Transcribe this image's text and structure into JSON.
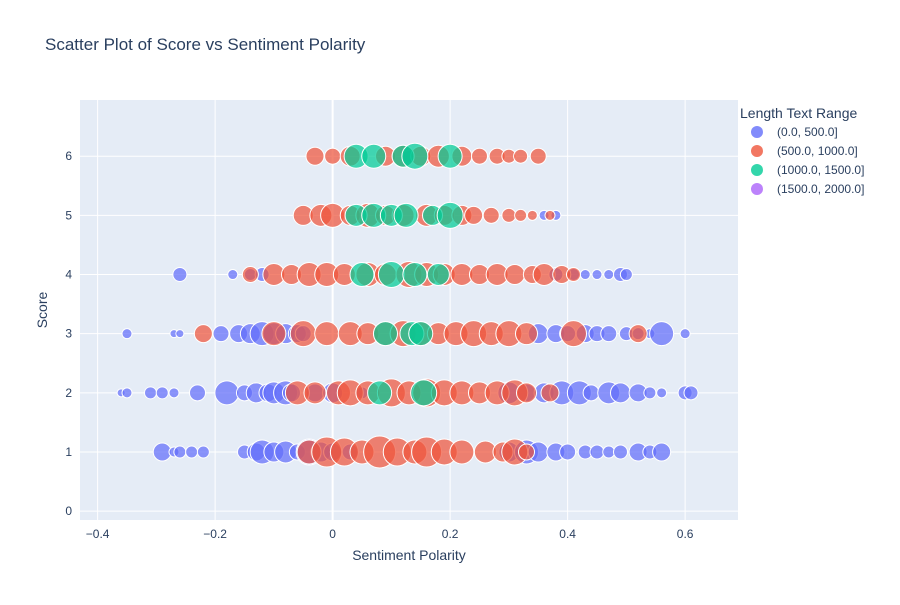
{
  "chart_data": {
    "type": "scatter",
    "title": "Scatter Plot of Score vs Sentiment Polarity",
    "xlabel": "Sentiment Polarity",
    "ylabel": "Score",
    "xlim": [
      -0.43,
      0.69
    ],
    "ylim": [
      -0.15,
      6.95
    ],
    "x_ticks": [
      -0.4,
      -0.2,
      0,
      0.2,
      0.4,
      0.6
    ],
    "x_tick_labels": [
      "−0.4",
      "−0.2",
      "0",
      "0.2",
      "0.4",
      "0.6"
    ],
    "y_ticks": [
      0,
      1,
      2,
      3,
      4,
      5,
      6
    ],
    "y_tick_labels": [
      "0",
      "1",
      "2",
      "3",
      "4",
      "5",
      "6"
    ],
    "grid": true,
    "marker_opacity": 0.72,
    "legend": {
      "title": "Length Text Range",
      "placement": "top-right",
      "entries": [
        "(0.0, 500.0]",
        "(500.0, 1000.0]",
        "(1000.0, 1500.0]",
        "(1500.0, 2000.0]"
      ]
    },
    "colors": {
      "plot_background": "#e5ecf6",
      "grid": "#ffffff",
      "series": [
        "#636efa",
        "#ef553b",
        "#00cc96",
        "#ab63fa"
      ],
      "text": "#2a3f5f"
    },
    "series": [
      {
        "name": "(0.0, 500.0]",
        "points": [
          [
            -0.29,
            1,
            9
          ],
          [
            -0.27,
            1,
            5
          ],
          [
            -0.26,
            1,
            6
          ],
          [
            -0.24,
            1,
            6
          ],
          [
            -0.22,
            1,
            6
          ],
          [
            -0.15,
            1,
            7
          ],
          [
            -0.13,
            1,
            9
          ],
          [
            -0.12,
            1,
            12
          ],
          [
            -0.1,
            1,
            10
          ],
          [
            -0.08,
            1,
            11
          ],
          [
            -0.06,
            1,
            8
          ],
          [
            -0.04,
            1,
            13
          ],
          [
            -0.02,
            1,
            10
          ],
          [
            0.0,
            1,
            9
          ],
          [
            0.03,
            1,
            8
          ],
          [
            0.3,
            1,
            10
          ],
          [
            0.33,
            1,
            12
          ],
          [
            0.35,
            1,
            10
          ],
          [
            0.38,
            1,
            9
          ],
          [
            0.4,
            1,
            8
          ],
          [
            0.43,
            1,
            7
          ],
          [
            0.45,
            1,
            7
          ],
          [
            0.47,
            1,
            6
          ],
          [
            0.49,
            1,
            7
          ],
          [
            0.52,
            1,
            9
          ],
          [
            0.54,
            1,
            7
          ],
          [
            0.56,
            1,
            9
          ],
          [
            -0.36,
            2,
            4
          ],
          [
            -0.35,
            2,
            5
          ],
          [
            -0.31,
            2,
            6
          ],
          [
            -0.29,
            2,
            6
          ],
          [
            -0.27,
            2,
            5
          ],
          [
            -0.23,
            2,
            8
          ],
          [
            -0.18,
            2,
            12
          ],
          [
            -0.15,
            2,
            8
          ],
          [
            -0.13,
            2,
            10
          ],
          [
            -0.11,
            2,
            9
          ],
          [
            -0.1,
            2,
            11
          ],
          [
            -0.08,
            2,
            12
          ],
          [
            -0.07,
            2,
            9
          ],
          [
            -0.03,
            2,
            9
          ],
          [
            0.0,
            2,
            10
          ],
          [
            0.05,
            2,
            6
          ],
          [
            0.3,
            2,
            11
          ],
          [
            0.33,
            2,
            9
          ],
          [
            0.36,
            2,
            10
          ],
          [
            0.39,
            2,
            12
          ],
          [
            0.42,
            2,
            12
          ],
          [
            0.44,
            2,
            8
          ],
          [
            0.47,
            2,
            11
          ],
          [
            0.49,
            2,
            10
          ],
          [
            0.52,
            2,
            9
          ],
          [
            0.54,
            2,
            6
          ],
          [
            0.56,
            2,
            5
          ],
          [
            0.6,
            2,
            7
          ],
          [
            0.61,
            2,
            7
          ],
          [
            -0.35,
            3,
            5
          ],
          [
            -0.27,
            3,
            4
          ],
          [
            -0.26,
            3,
            4
          ],
          [
            -0.19,
            3,
            8
          ],
          [
            -0.16,
            3,
            9
          ],
          [
            -0.14,
            3,
            10
          ],
          [
            -0.12,
            3,
            12
          ],
          [
            -0.1,
            3,
            11
          ],
          [
            -0.08,
            3,
            10
          ],
          [
            -0.06,
            3,
            9
          ],
          [
            -0.05,
            3,
            8
          ],
          [
            0.35,
            3,
            10
          ],
          [
            0.38,
            3,
            9
          ],
          [
            0.4,
            3,
            8
          ],
          [
            0.43,
            3,
            9
          ],
          [
            0.45,
            3,
            8
          ],
          [
            0.47,
            3,
            8
          ],
          [
            0.5,
            3,
            7
          ],
          [
            0.52,
            3,
            6
          ],
          [
            0.54,
            3,
            5
          ],
          [
            0.56,
            3,
            12
          ],
          [
            0.6,
            3,
            5
          ],
          [
            -0.26,
            4,
            7
          ],
          [
            -0.17,
            4,
            5
          ],
          [
            -0.14,
            4,
            6
          ],
          [
            -0.12,
            4,
            7
          ],
          [
            0.38,
            4,
            7
          ],
          [
            0.41,
            4,
            6
          ],
          [
            0.43,
            4,
            5
          ],
          [
            0.45,
            4,
            5
          ],
          [
            0.47,
            4,
            5
          ],
          [
            0.49,
            4,
            7
          ],
          [
            0.5,
            4,
            6
          ],
          [
            0.36,
            5,
            5
          ],
          [
            0.38,
            5,
            5
          ],
          [
            0.13,
            6,
            6
          ]
        ]
      },
      {
        "name": "(500.0, 1000.0]",
        "points": [
          [
            -0.04,
            1,
            12
          ],
          [
            -0.01,
            1,
            15
          ],
          [
            0.02,
            1,
            14
          ],
          [
            0.05,
            1,
            12
          ],
          [
            0.08,
            1,
            16
          ],
          [
            0.11,
            1,
            14
          ],
          [
            0.14,
            1,
            12
          ],
          [
            0.16,
            1,
            15
          ],
          [
            0.19,
            1,
            13
          ],
          [
            0.22,
            1,
            12
          ],
          [
            0.26,
            1,
            11
          ],
          [
            0.29,
            1,
            10
          ],
          [
            0.31,
            1,
            13
          ],
          [
            0.33,
            1,
            8
          ],
          [
            -0.06,
            2,
            12
          ],
          [
            -0.03,
            2,
            11
          ],
          [
            0.01,
            2,
            12
          ],
          [
            0.03,
            2,
            13
          ],
          [
            0.06,
            2,
            12
          ],
          [
            0.1,
            2,
            14
          ],
          [
            0.13,
            2,
            12
          ],
          [
            0.16,
            2,
            14
          ],
          [
            0.19,
            2,
            13
          ],
          [
            0.22,
            2,
            12
          ],
          [
            0.25,
            2,
            11
          ],
          [
            0.28,
            2,
            12
          ],
          [
            0.31,
            2,
            13
          ],
          [
            0.33,
            2,
            10
          ],
          [
            0.37,
            2,
            9
          ],
          [
            -0.22,
            3,
            9
          ],
          [
            -0.1,
            3,
            12
          ],
          [
            -0.05,
            3,
            13
          ],
          [
            -0.01,
            3,
            12
          ],
          [
            0.03,
            3,
            12
          ],
          [
            0.06,
            3,
            11
          ],
          [
            0.09,
            3,
            12
          ],
          [
            0.12,
            3,
            13
          ],
          [
            0.15,
            3,
            12
          ],
          [
            0.18,
            3,
            11
          ],
          [
            0.21,
            3,
            12
          ],
          [
            0.24,
            3,
            13
          ],
          [
            0.27,
            3,
            12
          ],
          [
            0.3,
            3,
            13
          ],
          [
            0.33,
            3,
            11
          ],
          [
            0.41,
            3,
            13
          ],
          [
            0.52,
            3,
            9
          ],
          [
            -0.14,
            4,
            8
          ],
          [
            -0.1,
            4,
            11
          ],
          [
            -0.07,
            4,
            10
          ],
          [
            -0.04,
            4,
            12
          ],
          [
            -0.01,
            4,
            12
          ],
          [
            0.02,
            4,
            11
          ],
          [
            0.06,
            4,
            12
          ],
          [
            0.09,
            4,
            11
          ],
          [
            0.13,
            4,
            13
          ],
          [
            0.16,
            4,
            12
          ],
          [
            0.19,
            4,
            11
          ],
          [
            0.22,
            4,
            11
          ],
          [
            0.25,
            4,
            10
          ],
          [
            0.28,
            4,
            11
          ],
          [
            0.31,
            4,
            10
          ],
          [
            0.34,
            4,
            9
          ],
          [
            0.36,
            4,
            11
          ],
          [
            0.39,
            4,
            9
          ],
          [
            0.41,
            4,
            7
          ],
          [
            -0.05,
            5,
            10
          ],
          [
            -0.02,
            5,
            11
          ],
          [
            0.0,
            5,
            12
          ],
          [
            0.03,
            5,
            10
          ],
          [
            0.06,
            5,
            12
          ],
          [
            0.09,
            5,
            10
          ],
          [
            0.12,
            5,
            11
          ],
          [
            0.16,
            5,
            11
          ],
          [
            0.19,
            5,
            10
          ],
          [
            0.22,
            5,
            10
          ],
          [
            0.24,
            5,
            9
          ],
          [
            0.27,
            5,
            8
          ],
          [
            0.3,
            5,
            7
          ],
          [
            0.32,
            5,
            6
          ],
          [
            0.34,
            5,
            5
          ],
          [
            0.37,
            5,
            5
          ],
          [
            -0.03,
            6,
            9
          ],
          [
            0.0,
            6,
            8
          ],
          [
            0.03,
            6,
            10
          ],
          [
            0.09,
            6,
            10
          ],
          [
            0.12,
            6,
            11
          ],
          [
            0.15,
            6,
            10
          ],
          [
            0.18,
            6,
            11
          ],
          [
            0.22,
            6,
            10
          ],
          [
            0.25,
            6,
            8
          ],
          [
            0.28,
            6,
            8
          ],
          [
            0.3,
            6,
            7
          ],
          [
            0.32,
            6,
            7
          ],
          [
            0.35,
            6,
            8
          ]
        ]
      },
      {
        "name": "(1000.0, 1500.0]",
        "points": [
          [
            0.08,
            2,
            12
          ],
          [
            0.155,
            2,
            13
          ],
          [
            0.09,
            3,
            12
          ],
          [
            0.135,
            3,
            12
          ],
          [
            0.15,
            3,
            12
          ],
          [
            0.05,
            4,
            12
          ],
          [
            0.1,
            4,
            13
          ],
          [
            0.14,
            4,
            12
          ],
          [
            0.18,
            4,
            11
          ],
          [
            0.04,
            5,
            11
          ],
          [
            0.07,
            5,
            12
          ],
          [
            0.1,
            5,
            11
          ],
          [
            0.125,
            5,
            12
          ],
          [
            0.17,
            5,
            10
          ],
          [
            0.2,
            5,
            13
          ],
          [
            0.04,
            6,
            12
          ],
          [
            0.07,
            6,
            12
          ],
          [
            0.12,
            6,
            11
          ],
          [
            0.14,
            6,
            13
          ],
          [
            0.2,
            6,
            12
          ]
        ]
      },
      {
        "name": "(1500.0, 2000.0]",
        "points": []
      }
    ]
  }
}
